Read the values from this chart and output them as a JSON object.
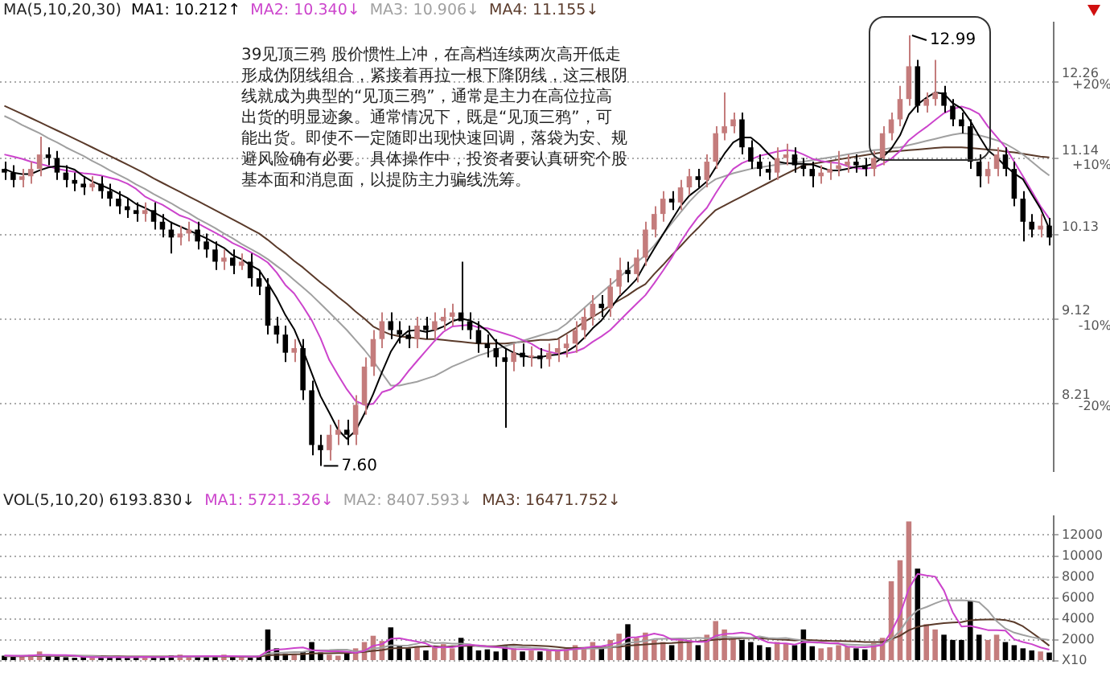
{
  "chart_data": [
    {
      "type": "candlestick",
      "legend": "top left",
      "legend_title": "MA(5,10,20,30)",
      "log": true,
      "grid": "y",
      "tick_labels": "y",
      "ylim": [
        7.55,
        13.2
      ],
      "yticks": [
        8.21,
        9.12,
        10.13,
        11.14,
        12.26
      ],
      "y2lim": [
        -28.4,
        27.4
      ],
      "y2ticks": [
        {
          "value": -20,
          "label": "-20%"
        },
        {
          "value": -10,
          "label": "-10%"
        },
        {
          "value": 10,
          "label": "+10%"
        },
        {
          "value": 20,
          "label": "+20%"
        }
      ],
      "annotations": [
        "39见顶三鸦 股价惯性上冲，在高档连续两次高开低走形成伪阴线组合，紧接着再拉一根下降阴线，这三根阴线就成为典型的“见顶三鸦”，通常是主力在高位拉高出货的明显迹象。通常情况下，既是“见顶三鸦”，可能出货。即使不一定随即出现快速回调，落袋为安、规避风险确有必要。具体操作中，投资者要认真研究个股基本面和消息面，以提防主力骗线洗筹。",
        "12.99",
        "7.60"
      ],
      "categories": [
        null,
        null,
        null,
        null,
        null,
        null,
        null,
        null,
        null,
        null,
        null,
        null,
        null,
        null,
        null,
        null,
        null,
        null,
        null,
        null,
        null,
        null,
        null,
        null,
        null,
        null,
        null,
        null,
        null,
        null,
        null,
        null,
        null,
        null,
        null,
        null,
        null,
        null,
        null,
        null,
        null,
        null,
        null,
        null,
        null,
        null,
        null,
        null,
        null,
        null,
        null,
        null,
        null,
        null,
        null,
        null,
        null,
        null,
        null,
        null,
        null,
        null,
        null,
        null,
        null,
        null,
        null,
        null,
        null,
        null,
        null,
        null,
        null,
        null,
        null,
        null,
        null,
        null,
        null,
        null,
        null,
        null,
        null,
        null,
        null,
        null,
        null,
        null,
        null,
        null,
        null,
        null,
        null,
        null,
        null,
        null,
        null,
        null,
        null,
        null,
        null,
        null,
        null,
        null,
        null,
        null,
        null,
        null,
        null,
        null,
        null,
        null,
        null,
        null,
        null,
        null,
        null,
        null,
        null,
        null
      ],
      "ohlc": [
        [
          11.0,
          11.1,
          10.85,
          10.95
        ],
        [
          10.95,
          11.05,
          10.75,
          10.85
        ],
        [
          10.85,
          11.0,
          10.75,
          10.9
        ],
        [
          10.9,
          11.1,
          10.8,
          11.0
        ],
        [
          11.0,
          11.45,
          10.9,
          11.2
        ],
        [
          11.2,
          11.3,
          11.05,
          11.15
        ],
        [
          11.15,
          11.25,
          10.85,
          10.95
        ],
        [
          10.95,
          11.05,
          10.75,
          10.85
        ],
        [
          10.85,
          10.95,
          10.7,
          10.8
        ],
        [
          10.8,
          10.9,
          10.65,
          10.75
        ],
        [
          10.75,
          10.9,
          10.7,
          10.8
        ],
        [
          10.8,
          10.9,
          10.6,
          10.7
        ],
        [
          10.7,
          10.8,
          10.5,
          10.6
        ],
        [
          10.6,
          10.7,
          10.4,
          10.5
        ],
        [
          10.5,
          10.6,
          10.35,
          10.45
        ],
        [
          10.45,
          10.55,
          10.3,
          10.4
        ],
        [
          10.4,
          10.55,
          10.3,
          10.45
        ],
        [
          10.45,
          10.55,
          10.2,
          10.3
        ],
        [
          10.3,
          10.4,
          10.1,
          10.2
        ],
        [
          10.2,
          10.3,
          9.9,
          10.1
        ],
        [
          10.1,
          10.25,
          10.0,
          10.15
        ],
        [
          10.15,
          10.3,
          10.05,
          10.2
        ],
        [
          10.2,
          10.3,
          9.95,
          10.05
        ],
        [
          10.05,
          10.15,
          9.85,
          9.95
        ],
        [
          9.95,
          10.05,
          9.7,
          9.8
        ],
        [
          9.8,
          9.95,
          9.7,
          9.85
        ],
        [
          9.85,
          9.95,
          9.65,
          9.75
        ],
        [
          9.75,
          9.9,
          9.7,
          9.8
        ],
        [
          9.8,
          9.9,
          9.5,
          9.6
        ],
        [
          9.6,
          9.7,
          9.4,
          9.5
        ],
        [
          9.5,
          9.6,
          8.95,
          9.05
        ],
        [
          9.05,
          9.15,
          8.85,
          8.95
        ],
        [
          8.95,
          9.05,
          8.65,
          8.75
        ],
        [
          8.75,
          8.9,
          8.65,
          8.8
        ],
        [
          8.8,
          8.9,
          8.25,
          8.35
        ],
        [
          8.35,
          8.45,
          7.7,
          7.8
        ],
        [
          7.8,
          7.9,
          7.6,
          7.75
        ],
        [
          7.75,
          8.0,
          7.65,
          7.9
        ],
        [
          7.9,
          8.05,
          7.8,
          7.95
        ],
        [
          7.95,
          8.05,
          7.8,
          7.9
        ],
        [
          7.9,
          8.3,
          7.8,
          8.2
        ],
        [
          8.2,
          8.7,
          8.1,
          8.6
        ],
        [
          8.6,
          9.0,
          8.5,
          8.9
        ],
        [
          8.9,
          9.2,
          8.8,
          9.1
        ],
        [
          9.1,
          9.2,
          8.9,
          9.0
        ],
        [
          9.0,
          9.1,
          8.85,
          8.95
        ],
        [
          8.95,
          9.05,
          8.8,
          8.9
        ],
        [
          8.9,
          9.15,
          8.8,
          9.05
        ],
        [
          9.05,
          9.15,
          8.9,
          9.0
        ],
        [
          9.0,
          9.2,
          8.9,
          9.1
        ],
        [
          9.1,
          9.25,
          9.0,
          9.15
        ],
        [
          9.15,
          9.3,
          9.05,
          9.2
        ],
        [
          9.2,
          9.8,
          9.0,
          9.1
        ],
        [
          9.1,
          9.2,
          8.9,
          9.0
        ],
        [
          9.0,
          9.1,
          8.75,
          8.85
        ],
        [
          8.85,
          8.95,
          8.7,
          8.8
        ],
        [
          8.8,
          8.9,
          8.6,
          8.7
        ],
        [
          8.7,
          8.8,
          7.97,
          8.65
        ],
        [
          8.65,
          8.85,
          8.55,
          8.75
        ],
        [
          8.75,
          8.85,
          8.6,
          8.7
        ],
        [
          8.7,
          8.82,
          8.6,
          8.72
        ],
        [
          8.72,
          8.8,
          8.58,
          8.68
        ],
        [
          8.68,
          8.85,
          8.6,
          8.75
        ],
        [
          8.75,
          8.9,
          8.65,
          8.8
        ],
        [
          8.8,
          8.95,
          8.7,
          8.85
        ],
        [
          8.85,
          9.1,
          8.75,
          9.0
        ],
        [
          9.0,
          9.25,
          8.9,
          9.15
        ],
        [
          9.15,
          9.4,
          9.05,
          9.3
        ],
        [
          9.3,
          9.4,
          9.15,
          9.25
        ],
        [
          9.25,
          9.6,
          9.15,
          9.5
        ],
        [
          9.5,
          9.85,
          9.4,
          9.7
        ],
        [
          9.7,
          9.8,
          9.55,
          9.65
        ],
        [
          9.65,
          9.95,
          9.55,
          9.85
        ],
        [
          9.85,
          10.3,
          9.75,
          10.2
        ],
        [
          10.2,
          10.5,
          10.1,
          10.4
        ],
        [
          10.4,
          10.7,
          10.3,
          10.6
        ],
        [
          10.6,
          10.7,
          10.45,
          10.55
        ],
        [
          10.55,
          10.85,
          10.45,
          10.75
        ],
        [
          10.75,
          11.0,
          10.65,
          10.9
        ],
        [
          10.9,
          11.0,
          10.75,
          10.85
        ],
        [
          10.85,
          11.2,
          10.75,
          11.1
        ],
        [
          11.1,
          11.6,
          11.0,
          11.5
        ],
        [
          11.5,
          12.1,
          11.4,
          11.6
        ],
        [
          11.6,
          11.8,
          11.5,
          11.7
        ],
        [
          11.7,
          11.8,
          11.2,
          11.3
        ],
        [
          11.3,
          11.4,
          11.0,
          11.1
        ],
        [
          11.1,
          11.2,
          10.9,
          11.0
        ],
        [
          11.0,
          11.1,
          10.85,
          10.95
        ],
        [
          10.95,
          11.3,
          10.85,
          11.15
        ],
        [
          11.15,
          11.35,
          11.05,
          11.2
        ],
        [
          11.2,
          11.3,
          10.95,
          11.05
        ],
        [
          11.05,
          11.15,
          10.9,
          11.0
        ],
        [
          11.0,
          11.1,
          10.75,
          10.9
        ],
        [
          10.9,
          11.05,
          10.8,
          10.95
        ],
        [
          10.95,
          11.1,
          10.85,
          11.0
        ],
        [
          11.0,
          11.25,
          10.9,
          11.05
        ],
        [
          11.05,
          11.2,
          10.95,
          11.1
        ],
        [
          11.1,
          11.2,
          10.95,
          11.05
        ],
        [
          11.05,
          11.15,
          10.9,
          11.0
        ],
        [
          11.0,
          11.25,
          10.9,
          11.15
        ],
        [
          11.15,
          11.6,
          11.05,
          11.5
        ],
        [
          11.5,
          11.8,
          11.4,
          11.7
        ],
        [
          11.7,
          12.2,
          11.6,
          12.0
        ],
        [
          12.0,
          12.99,
          11.9,
          12.5
        ],
        [
          12.5,
          12.6,
          11.8,
          11.9
        ],
        [
          11.9,
          12.1,
          11.8,
          12.0
        ],
        [
          12.0,
          12.6,
          11.9,
          12.1
        ],
        [
          12.1,
          12.2,
          11.8,
          11.9
        ],
        [
          11.9,
          12.0,
          11.6,
          11.7
        ],
        [
          11.7,
          11.8,
          11.5,
          11.6
        ],
        [
          11.6,
          11.7,
          11.0,
          11.1
        ],
        [
          11.1,
          11.2,
          10.75,
          10.9
        ],
        [
          10.9,
          11.1,
          10.8,
          11.0
        ],
        [
          11.0,
          11.3,
          10.9,
          11.2
        ],
        [
          11.2,
          11.3,
          10.9,
          11.0
        ],
        [
          11.0,
          11.1,
          10.5,
          10.6
        ],
        [
          10.6,
          10.7,
          10.05,
          10.3
        ],
        [
          10.3,
          10.4,
          10.1,
          10.2
        ],
        [
          10.2,
          10.4,
          10.1,
          10.25
        ],
        [
          10.25,
          10.35,
          10.0,
          10.1
        ]
      ],
      "colors": [
        "#000000",
        "#000000",
        "#c47c7c",
        "#c47c7c",
        "#c47c7c",
        "#000000",
        "#000000",
        "#000000",
        "#000000",
        "#000000",
        "#c47c7c",
        "#000000",
        "#000000",
        "#000000",
        "#000000",
        "#000000",
        "#c47c7c",
        "#000000",
        "#000000",
        "#000000",
        "#c47c7c",
        "#c47c7c",
        "#000000",
        "#000000",
        "#000000",
        "#c47c7c",
        "#000000",
        "#c47c7c",
        "#000000",
        "#000000",
        "#000000",
        "#000000",
        "#000000",
        "#c47c7c",
        "#000000",
        "#000000",
        "#000000",
        "#c47c7c",
        "#c47c7c",
        "#000000",
        "#c47c7c",
        "#c47c7c",
        "#c47c7c",
        "#c47c7c",
        "#000000",
        "#000000",
        "#000000",
        "#c47c7c",
        "#000000",
        "#c47c7c",
        "#c47c7c",
        "#c47c7c",
        "#000000",
        "#000000",
        "#000000",
        "#000000",
        "#000000",
        "#000000",
        "#c47c7c",
        "#000000",
        "#c47c7c",
        "#000000",
        "#c47c7c",
        "#c47c7c",
        "#c47c7c",
        "#c47c7c",
        "#c47c7c",
        "#c47c7c",
        "#000000",
        "#c47c7c",
        "#c47c7c",
        "#000000",
        "#c47c7c",
        "#c47c7c",
        "#c47c7c",
        "#c47c7c",
        "#000000",
        "#c47c7c",
        "#c47c7c",
        "#000000",
        "#c47c7c",
        "#c47c7c",
        "#c47c7c",
        "#c47c7c",
        "#000000",
        "#000000",
        "#000000",
        "#000000",
        "#c47c7c",
        "#c47c7c",
        "#000000",
        "#000000",
        "#000000",
        "#c47c7c",
        "#c47c7c",
        "#c47c7c",
        "#c47c7c",
        "#000000",
        "#000000",
        "#c47c7c",
        "#c47c7c",
        "#c47c7c",
        "#c47c7c",
        "#c47c7c",
        "#000000",
        "#c47c7c",
        "#c47c7c",
        "#000000",
        "#000000",
        "#000000",
        "#000000",
        "#000000",
        "#c47c7c",
        "#c47c7c",
        "#000000",
        "#000000",
        "#000000",
        "#000000",
        "#c47c7c",
        "#000000"
      ],
      "series": [
        {
          "type": "line",
          "name": "MA1: 10.212↑",
          "color": "#000000",
          "values": [
            11.0,
            10.95,
            10.93,
            10.93,
            10.98,
            11.02,
            11.04,
            11.03,
            10.99,
            10.9,
            10.83,
            10.78,
            10.73,
            10.67,
            10.61,
            10.53,
            10.48,
            10.42,
            10.36,
            10.29,
            10.24,
            10.19,
            10.14,
            10.09,
            10.03,
            9.97,
            9.88,
            9.83,
            9.76,
            9.7,
            9.54,
            9.37,
            9.17,
            9.01,
            8.78,
            8.53,
            8.29,
            8.12,
            7.95,
            7.86,
            7.94,
            8.11,
            8.31,
            8.54,
            8.76,
            8.91,
            8.99,
            9.0,
            8.98,
            9.0,
            9.04,
            9.1,
            9.13,
            9.11,
            9.06,
            8.99,
            8.87,
            8.8,
            8.75,
            8.72,
            8.7,
            8.7,
            8.72,
            8.73,
            8.76,
            8.82,
            8.91,
            9.02,
            9.11,
            9.24,
            9.38,
            9.48,
            9.59,
            9.78,
            9.96,
            10.14,
            10.32,
            10.5,
            10.64,
            10.73,
            10.83,
            11.02,
            11.21,
            11.37,
            11.44,
            11.44,
            11.34,
            11.21,
            11.1,
            11.08,
            11.07,
            11.07,
            11.06,
            11.02,
            10.98,
            10.98,
            11.0,
            11.03,
            11.04,
            11.07,
            11.16,
            11.28,
            11.47,
            11.77,
            11.92,
            12.02,
            12.1,
            12.08,
            11.94,
            11.86,
            11.68,
            11.46,
            11.26,
            11.16,
            11.04,
            10.94,
            10.86,
            10.66,
            10.47,
            10.21
          ]
        },
        {
          "type": "line",
          "name": "MA2: 10.340↓",
          "color": "#cc44cc",
          "values": [
            11.2,
            11.17,
            11.14,
            11.1,
            11.07,
            11.04,
            11.0,
            10.98,
            10.96,
            10.94,
            10.93,
            10.91,
            10.88,
            10.85,
            10.8,
            10.73,
            10.63,
            10.57,
            10.52,
            10.45,
            10.38,
            10.34,
            10.28,
            10.22,
            10.16,
            10.1,
            10.03,
            9.98,
            9.92,
            9.86,
            9.79,
            9.67,
            9.52,
            9.42,
            9.27,
            9.11,
            8.91,
            8.67,
            8.51,
            8.36,
            8.24,
            8.2,
            8.21,
            8.33,
            8.36,
            8.43,
            8.55,
            8.66,
            8.77,
            8.88,
            8.98,
            9.04,
            9.05,
            9.06,
            9.03,
            9.02,
            8.99,
            8.96,
            8.93,
            8.89,
            8.85,
            8.79,
            8.76,
            8.74,
            8.74,
            8.76,
            8.8,
            8.87,
            8.93,
            9.0,
            9.1,
            9.2,
            9.3,
            9.4,
            9.54,
            9.69,
            9.85,
            10.04,
            10.21,
            10.36,
            10.48,
            10.67,
            10.85,
            11.0,
            11.08,
            11.13,
            11.18,
            11.21,
            11.24,
            11.26,
            11.25,
            11.2,
            11.14,
            11.11,
            11.09,
            11.08,
            11.04,
            11.01,
            11.0,
            11.02,
            11.07,
            11.14,
            11.25,
            11.4,
            11.5,
            11.59,
            11.69,
            11.79,
            11.85,
            11.89,
            11.85,
            11.78,
            11.6,
            11.45,
            11.3,
            11.1,
            10.9,
            10.7,
            10.5,
            10.34
          ]
        },
        {
          "type": "line",
          "name": "MA3: 10.906↓",
          "color": "#a0a0a0",
          "values": [
            11.75,
            11.69,
            11.62,
            11.56,
            11.5,
            11.43,
            11.37,
            11.3,
            11.24,
            11.18,
            11.11,
            11.05,
            10.98,
            10.92,
            10.86,
            10.79,
            10.73,
            10.66,
            10.6,
            10.54,
            10.47,
            10.41,
            10.34,
            10.28,
            10.22,
            10.15,
            10.09,
            10.02,
            9.96,
            9.9,
            9.83,
            9.75,
            9.67,
            9.58,
            9.49,
            9.4,
            9.3,
            9.2,
            9.1,
            9.0,
            8.89,
            8.78,
            8.66,
            8.53,
            8.4,
            8.4,
            8.42,
            8.44,
            8.47,
            8.5,
            8.55,
            8.6,
            8.64,
            8.68,
            8.72,
            8.75,
            8.79,
            8.82,
            8.85,
            8.88,
            8.91,
            8.94,
            8.97,
            9.0,
            9.07,
            9.16,
            9.25,
            9.34,
            9.43,
            9.52,
            9.61,
            9.7,
            9.79,
            9.88,
            10.0,
            10.14,
            10.28,
            10.42,
            10.56,
            10.68,
            10.78,
            10.86,
            10.9,
            10.94,
            10.97,
            11.0,
            11.02,
            11.04,
            11.06,
            11.07,
            11.09,
            11.1,
            11.12,
            11.14,
            11.16,
            11.18,
            11.2,
            11.22,
            11.24,
            11.26,
            11.27,
            11.29,
            11.3,
            11.33,
            11.36,
            11.39,
            11.42,
            11.45,
            11.48,
            11.5,
            11.49,
            11.47,
            11.44,
            11.4,
            11.35,
            11.28,
            11.2,
            11.1,
            11.0,
            10.91
          ]
        },
        {
          "type": "line",
          "name": "MA4: 11.155↓",
          "color": "#5a3a2a",
          "values": [
            11.9,
            11.84,
            11.78,
            11.72,
            11.66,
            11.6,
            11.54,
            11.48,
            11.42,
            11.36,
            11.3,
            11.24,
            11.18,
            11.12,
            11.06,
            11.0,
            10.94,
            10.87,
            10.81,
            10.75,
            10.69,
            10.63,
            10.57,
            10.51,
            10.45,
            10.39,
            10.33,
            10.27,
            10.21,
            10.15,
            10.07,
            9.98,
            9.9,
            9.81,
            9.73,
            9.64,
            9.55,
            9.47,
            9.38,
            9.3,
            9.21,
            9.13,
            9.04,
            8.99,
            8.95,
            8.93,
            8.92,
            8.91,
            8.9,
            8.9,
            8.89,
            8.88,
            8.87,
            8.86,
            8.85,
            8.85,
            8.85,
            8.85,
            8.86,
            8.87,
            8.88,
            8.89,
            8.89,
            8.9,
            8.96,
            9.02,
            9.09,
            9.15,
            9.21,
            9.28,
            9.34,
            9.4,
            9.47,
            9.53,
            9.65,
            9.76,
            9.88,
            9.99,
            10.11,
            10.22,
            10.34,
            10.45,
            10.51,
            10.57,
            10.63,
            10.69,
            10.75,
            10.81,
            10.87,
            10.93,
            10.99,
            11.05,
            11.07,
            11.09,
            11.11,
            11.13,
            11.15,
            11.17,
            11.19,
            11.21,
            11.23,
            11.24,
            11.25,
            11.26,
            11.27,
            11.28,
            11.29,
            11.3,
            11.3,
            11.3,
            11.29,
            11.28,
            11.27,
            11.26,
            11.24,
            11.23,
            11.21,
            11.19,
            11.17,
            11.16
          ]
        }
      ]
    },
    {
      "type": "bar",
      "legend": "top left",
      "legend_title": "VOL(5,10,20) 6193.830↓",
      "grid": "y",
      "tick_labels": "y",
      "ylim": [
        0,
        13800
      ],
      "yticks": [
        {
          "value": 0,
          "label": "X10"
        },
        2000,
        4000,
        6000,
        8000,
        10000,
        12000
      ],
      "categories": [
        null,
        null,
        null,
        null,
        null,
        null,
        null,
        null,
        null,
        null,
        null,
        null,
        null,
        null,
        null,
        null,
        null,
        null,
        null,
        null,
        null,
        null,
        null,
        null,
        null,
        null,
        null,
        null,
        null,
        null,
        null,
        null,
        null,
        null,
        null,
        null,
        null,
        null,
        null,
        null,
        null,
        null,
        null,
        null,
        null,
        null,
        null,
        null,
        null,
        null,
        null,
        null,
        null,
        null,
        null,
        null,
        null,
        null,
        null,
        null,
        null,
        null,
        null,
        null,
        null,
        null,
        null,
        null,
        null,
        null,
        null,
        null,
        null,
        null,
        null,
        null,
        null,
        null,
        null,
        null,
        null,
        null,
        null,
        null,
        null,
        null,
        null,
        null,
        null,
        null,
        null,
        null,
        null,
        null,
        null,
        null,
        null,
        null,
        null,
        null,
        null,
        null,
        null,
        null,
        null,
        null,
        null,
        null,
        null,
        null,
        null,
        null,
        null,
        null,
        null,
        null,
        null,
        null,
        null,
        null
      ],
      "series": [
        {
          "type": "bar",
          "values": [
            500,
            400,
            450,
            600,
            900,
            500,
            400,
            350,
            300,
            400,
            350,
            300,
            400,
            350,
            300,
            450,
            400,
            350,
            300,
            500,
            600,
            450,
            400,
            350,
            500,
            600,
            400,
            350,
            300,
            500,
            3000,
            1200,
            700,
            600,
            900,
            1800,
            800,
            600,
            500,
            700,
            1200,
            1800,
            2400,
            1900,
            3200,
            1500,
            1200,
            1400,
            1000,
            1300,
            1600,
            1200,
            2200,
            1400,
            1000,
            1100,
            900,
            1500,
            1200,
            900,
            1000,
            900,
            1100,
            1000,
            1200,
            1500,
            1300,
            1800,
            1200,
            2000,
            2600,
            3500,
            2200,
            2700,
            2000,
            1800,
            1500,
            2200,
            2000,
            1500,
            2500,
            3800,
            3000,
            2200,
            2000,
            1800,
            1500,
            1300,
            1800,
            1700,
            1500,
            3000,
            1400,
            1200,
            1300,
            1500,
            1400,
            1200,
            1100,
            1700,
            2200,
            7600,
            9600,
            13300,
            8800,
            3500,
            3000,
            2500,
            2000,
            2000,
            5700,
            2500,
            2000,
            2500,
            1800,
            1500,
            1200,
            1000,
            900,
            800
          ],
          "colors": [
            "#000000",
            "#000000",
            "#c47c7c",
            "#c47c7c",
            "#c47c7c",
            "#000000",
            "#000000",
            "#000000",
            "#000000",
            "#000000",
            "#c47c7c",
            "#000000",
            "#000000",
            "#000000",
            "#000000",
            "#000000",
            "#c47c7c",
            "#000000",
            "#000000",
            "#000000",
            "#c47c7c",
            "#c47c7c",
            "#000000",
            "#000000",
            "#000000",
            "#c47c7c",
            "#000000",
            "#c47c7c",
            "#000000",
            "#000000",
            "#000000",
            "#000000",
            "#000000",
            "#c47c7c",
            "#000000",
            "#000000",
            "#000000",
            "#c47c7c",
            "#c47c7c",
            "#000000",
            "#c47c7c",
            "#c47c7c",
            "#c47c7c",
            "#c47c7c",
            "#000000",
            "#000000",
            "#000000",
            "#c47c7c",
            "#000000",
            "#c47c7c",
            "#c47c7c",
            "#c47c7c",
            "#000000",
            "#000000",
            "#000000",
            "#000000",
            "#000000",
            "#000000",
            "#c47c7c",
            "#000000",
            "#c47c7c",
            "#000000",
            "#c47c7c",
            "#c47c7c",
            "#c47c7c",
            "#c47c7c",
            "#c47c7c",
            "#c47c7c",
            "#000000",
            "#c47c7c",
            "#c47c7c",
            "#000000",
            "#c47c7c",
            "#c47c7c",
            "#c47c7c",
            "#c47c7c",
            "#000000",
            "#c47c7c",
            "#c47c7c",
            "#000000",
            "#c47c7c",
            "#c47c7c",
            "#c47c7c",
            "#c47c7c",
            "#000000",
            "#000000",
            "#000000",
            "#000000",
            "#c47c7c",
            "#c47c7c",
            "#000000",
            "#000000",
            "#000000",
            "#c47c7c",
            "#c47c7c",
            "#c47c7c",
            "#c47c7c",
            "#000000",
            "#000000",
            "#c47c7c",
            "#c47c7c",
            "#c47c7c",
            "#c47c7c",
            "#c47c7c",
            "#000000",
            "#c47c7c",
            "#c47c7c",
            "#000000",
            "#000000",
            "#000000",
            "#000000",
            "#000000",
            "#c47c7c",
            "#c47c7c",
            "#000000",
            "#000000",
            "#000000",
            "#000000",
            "#c47c7c",
            "#000000"
          ]
        },
        {
          "type": "line",
          "name": "MA1: 5721.326↓",
          "color": "#cc44cc",
          "values": [
            520,
            500,
            480,
            520,
            570,
            570,
            550,
            550,
            490,
            390,
            360,
            340,
            350,
            360,
            340,
            360,
            380,
            370,
            360,
            400,
            430,
            440,
            450,
            460,
            460,
            460,
            460,
            440,
            430,
            430,
            950,
            1070,
            1140,
            1220,
            1280,
            1040,
            960,
            920,
            920,
            880,
            760,
            960,
            1440,
            1600,
            2100,
            2160,
            2000,
            1840,
            1660,
            1280,
            1300,
            1300,
            1460,
            1540,
            1480,
            1380,
            1320,
            1220,
            1140,
            1120,
            1100,
            1100,
            1020,
            980,
            1040,
            1140,
            1220,
            1360,
            1400,
            1560,
            1780,
            2220,
            2260,
            2400,
            2600,
            2440,
            2040,
            2040,
            1900,
            1800,
            1840,
            2400,
            2560,
            2600,
            2700,
            2560,
            2100,
            1760,
            1680,
            1660,
            1560,
            1800,
            1780,
            1760,
            1680,
            1680,
            1360,
            1320,
            1300,
            1380,
            1520,
            2760,
            4440,
            6880,
            8300,
            8140,
            8040,
            6720,
            4640,
            3280,
            3340,
            3140,
            2940,
            2940,
            2900,
            2060,
            1800,
            1600,
            1280,
            1080
          ]
        },
        {
          "type": "line",
          "name": "MA2: 8407.593↓",
          "color": "#a0a0a0",
          "values": [
            480,
            480,
            490,
            500,
            510,
            520,
            520,
            520,
            510,
            480,
            460,
            420,
            400,
            380,
            360,
            360,
            360,
            360,
            360,
            380,
            400,
            400,
            410,
            430,
            430,
            440,
            450,
            450,
            450,
            450,
            700,
            760,
            800,
            840,
            860,
            1000,
            1010,
            1030,
            1070,
            1080,
            900,
            960,
            1180,
            1260,
            1490,
            1460,
            1480,
            1640,
            1880,
            1690,
            1730,
            1650,
            1650,
            1600,
            1380,
            1340,
            1310,
            1340,
            1340,
            1300,
            1240,
            1210,
            1120,
            1060,
            1080,
            1120,
            1160,
            1190,
            1190,
            1300,
            1460,
            1720,
            1810,
            1900,
            2080,
            2110,
            2130,
            2150,
            2150,
            2200,
            2140,
            2220,
            2300,
            2250,
            2250,
            2200,
            2330,
            2180,
            2140,
            2180,
            2060,
            1950,
            1770,
            1720,
            1670,
            1620,
            1580,
            1540,
            1490,
            1530,
            1600,
            2060,
            2870,
            4090,
            4840,
            5140,
            5490,
            5800,
            5770,
            5790,
            5740,
            5590,
            4830,
            3790,
            3090,
            2700,
            2470,
            2270,
            2110,
            1990
          ]
        },
        {
          "type": "line",
          "name": "MA3: 16471.752↓",
          "color": "#5a3a2a",
          "values": [
            450,
            450,
            450,
            460,
            460,
            470,
            470,
            470,
            470,
            470,
            470,
            460,
            450,
            440,
            430,
            430,
            420,
            420,
            420,
            420,
            420,
            420,
            420,
            420,
            420,
            420,
            410,
            410,
            410,
            410,
            540,
            580,
            600,
            630,
            650,
            700,
            720,
            730,
            740,
            750,
            790,
            860,
            960,
            1040,
            1180,
            1230,
            1240,
            1340,
            1380,
            1390,
            1330,
            1390,
            1410,
            1440,
            1440,
            1400,
            1400,
            1490,
            1550,
            1500,
            1480,
            1430,
            1390,
            1330,
            1230,
            1230,
            1240,
            1260,
            1270,
            1300,
            1350,
            1460,
            1510,
            1570,
            1620,
            1680,
            1700,
            1760,
            1810,
            1860,
            1930,
            2030,
            2090,
            2100,
            2160,
            2170,
            2170,
            2110,
            2050,
            2020,
            1960,
            2010,
            1970,
            1940,
            1910,
            1900,
            1880,
            1850,
            1810,
            1800,
            1800,
            2080,
            2400,
            2920,
            3250,
            3400,
            3500,
            3600,
            3660,
            3700,
            3880,
            3920,
            3940,
            3960,
            3900,
            3700,
            3300,
            2700,
            2100,
            1450
          ]
        }
      ]
    }
  ]
}
